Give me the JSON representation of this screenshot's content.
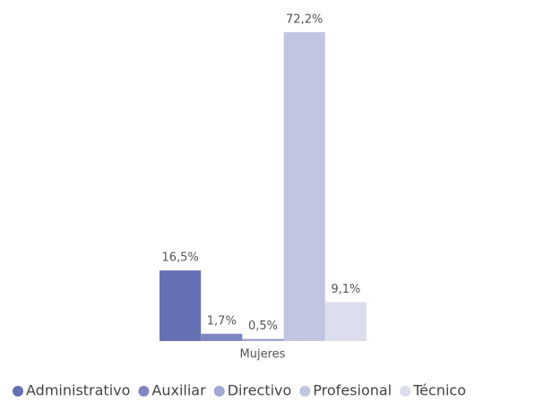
{
  "chart_data": {
    "type": "bar",
    "categories": [
      "Mujeres"
    ],
    "series": [
      {
        "name": "Administrativo",
        "color": "#6670b5",
        "values": [
          16.5
        ],
        "value_labels": [
          "16,5%"
        ]
      },
      {
        "name": "Auxiliar",
        "color": "#7f87c2",
        "values": [
          1.7
        ],
        "value_labels": [
          "1,7%"
        ]
      },
      {
        "name": "Directivo",
        "color": "#a0a7d2",
        "values": [
          0.5
        ],
        "value_labels": [
          "0,5%"
        ]
      },
      {
        "name": "Profesional",
        "color": "#c1c5e2",
        "values": [
          72.2
        ],
        "value_labels": [
          "72,2%"
        ]
      },
      {
        "name": "Técnico",
        "color": "#dcdeee",
        "values": [
          9.1
        ],
        "value_labels": [
          "9,1%"
        ]
      }
    ],
    "legend": "bottom"
  }
}
